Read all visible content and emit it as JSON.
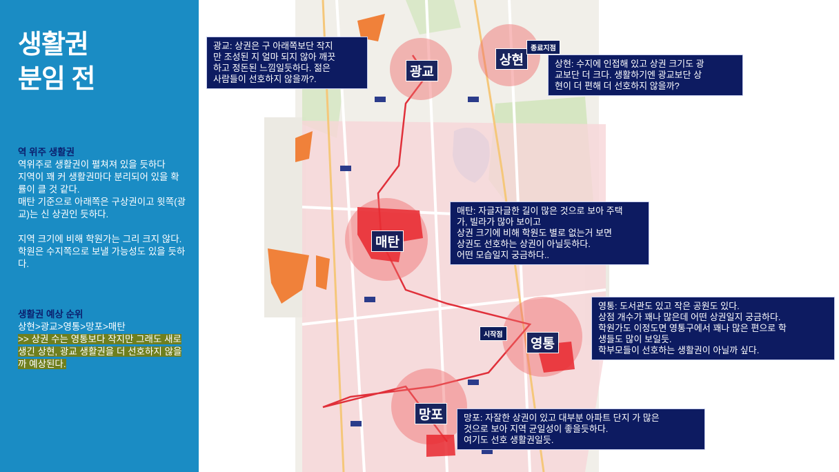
{
  "sidebar": {
    "title_line1": "생활권",
    "title_line2": "분임 전",
    "section1": {
      "heading": "역 위주 생활권",
      "lines": [
        "역위주로 생활권이 펼쳐져 있을 듯하다",
        "지역이 꽤 커 생활권마다 분리되어 있을 확률이 클 것 같다.",
        "매탄 기준으로 아래쪽은 구상권이고 윗쪽(광교)는 신 상권인 듯하다."
      ],
      "paragraph2": "지역 크기에 비해 학원가는 그리 크지 않다. 학원은 수지쪽으로 보낼 가능성도 있을 듯하다."
    },
    "section2": {
      "heading": "생활권 예상 순위",
      "ranking": "상현>광교>영통>망포>매탄",
      "highlight": ">> 상권 수는 영통보다 작지만 그래도 새로 생긴 상현, 광교 생활권을 더 선호하지 않을까 예상된다."
    }
  },
  "map": {
    "districts": {
      "gwanggyo": "광교",
      "sanghyeon": "상현",
      "maetan": "매탄",
      "yeongtong": "영통",
      "mangpo": "망포"
    },
    "tags": {
      "end_point": "종료지점",
      "start_point": "시작점"
    },
    "notes": {
      "gwanggyo": [
        "광교: 상권은 구 아래쪽보단 작지",
        "만 조성된 지 얼마 되지 않아 깨끗",
        "하고 정돈된 느낌일듯하다. 젊은",
        "사람들이 선호하지 않을까?."
      ],
      "sanghyeon": [
        "상현: 수지에 인접해 있고 상권 크기도 광",
        "교보단 더 크다. 생활하기엔 광교보단 상",
        "현이 더 편해 더 선호하지 않을까?"
      ],
      "maetan": [
        "매탄: 자글자글한 길이 많은 것으로 보아 주택",
        "가, 빌라가 많아 보이고",
        "상권 크기에 비해 학원도 별로 없는거 보면",
        " 상권도 선호하는 상권이 아닐듯하다.",
        "어떤 모습일지 궁금하다.."
      ],
      "yeongtong": [
        "영통: 도서관도 있고 작은 공원도 있다.",
        "상점 개수가 꽤나 많은데 어떤 상권일지 궁금하다.",
        "학원가도 이정도면 영통구에서 꽤나 많은 편으로 학",
        "생들도 많이 보일듯.",
        "학부모들이 선호하는 생활권이 아닐까 싶다."
      ],
      "mangpo": [
        "망포: 자잘한 상권이 있고 대부분 아파트 단지 가 많은",
        "것으로 보아 지역 균일성이 좋을듯하다.",
        "여기도 선호 생활권일듯."
      ]
    },
    "colors": {
      "sidebar_bg": "#1a8cc4",
      "note_bg": "#0d1b61",
      "circle_fill": "#f06a6a",
      "highlight": "#6f7f1e"
    }
  }
}
